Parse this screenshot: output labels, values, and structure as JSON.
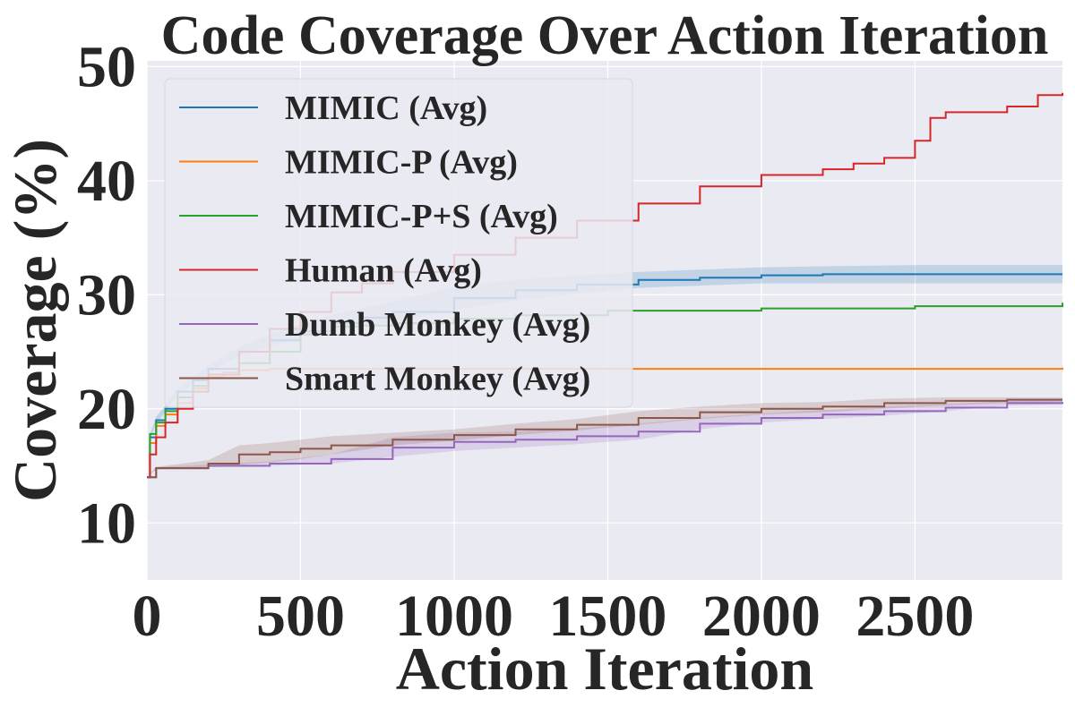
{
  "chart_data": {
    "type": "line",
    "title": "Code Coverage Over Action Iteration",
    "xlabel": "Action Iteration",
    "ylabel": "Coverage (%)",
    "xlim": [
      0,
      2980
    ],
    "ylim": [
      5,
      50.5
    ],
    "xticks": [
      0,
      500,
      1000,
      1500,
      2000,
      2500
    ],
    "yticks": [
      10,
      20,
      30,
      40,
      50
    ],
    "grid": true,
    "legend_position": "top-left",
    "background": "#eaeaf2",
    "series": [
      {
        "name": "MIMIC (Avg)",
        "color": "#1f77b4",
        "x": [
          0,
          10,
          30,
          60,
          100,
          150,
          200,
          300,
          400,
          500,
          600,
          700,
          800,
          1000,
          1200,
          1400,
          1600,
          1800,
          2000,
          2200,
          2500,
          2980
        ],
        "y": [
          14,
          17.5,
          19,
          20,
          21.5,
          22.5,
          23.5,
          25,
          26,
          26.8,
          27.5,
          28,
          28.5,
          29.7,
          30.4,
          30.9,
          31.3,
          31.5,
          31.7,
          31.8,
          31.8,
          31.8
        ],
        "band_low": [
          14,
          17.2,
          18.7,
          19.7,
          21.2,
          22.2,
          23.2,
          24.6,
          25.5,
          26.2,
          26.8,
          27.2,
          27.6,
          28.7,
          29.5,
          30.1,
          30.6,
          30.8,
          31.0,
          31.0,
          31.0,
          31.0
        ],
        "band_high": [
          14,
          17.8,
          19.3,
          20.3,
          21.8,
          22.8,
          23.8,
          25.4,
          26.5,
          27.4,
          28.2,
          28.8,
          29.4,
          30.7,
          31.3,
          31.7,
          32.0,
          32.2,
          32.4,
          32.5,
          32.6,
          32.6
        ]
      },
      {
        "name": "MIMIC-P (Avg)",
        "color": "#ff7f0e",
        "x": [
          0,
          10,
          30,
          60,
          100,
          150,
          200,
          250,
          300,
          400,
          500,
          1000,
          1500,
          2000,
          2500,
          2980
        ],
        "y": [
          14,
          17,
          18.5,
          19.5,
          20.5,
          21.8,
          22.8,
          23.2,
          23.4,
          23.5,
          23.5,
          23.5,
          23.5,
          23.5,
          23.5,
          23.6
        ]
      },
      {
        "name": "MIMIC-P+S (Avg)",
        "color": "#2ca02c",
        "x": [
          0,
          10,
          30,
          60,
          100,
          150,
          200,
          300,
          400,
          500,
          600,
          700,
          800,
          1000,
          1200,
          1500,
          2000,
          2500,
          2980
        ],
        "y": [
          14,
          17.8,
          18.8,
          19.8,
          21,
          22,
          23,
          24,
          25,
          26.5,
          27.2,
          27.3,
          27.5,
          27.9,
          28.2,
          28.6,
          28.8,
          29,
          29.3
        ]
      },
      {
        "name": "Human (Avg)",
        "color": "#d62728",
        "x": [
          0,
          10,
          30,
          60,
          100,
          150,
          200,
          300,
          400,
          500,
          600,
          700,
          800,
          1000,
          1200,
          1400,
          1600,
          1800,
          2000,
          2200,
          2300,
          2400,
          2500,
          2550,
          2600,
          2800,
          2900,
          2980
        ],
        "y": [
          14,
          16,
          17.5,
          18.8,
          20,
          21.5,
          23,
          25,
          27,
          28.5,
          30.2,
          31,
          32,
          33.5,
          35,
          36.5,
          38,
          39.5,
          40.5,
          41,
          41.5,
          42,
          43.5,
          45.5,
          46,
          46.5,
          47.5,
          47.7
        ]
      },
      {
        "name": "Dumb Monkey (Avg)",
        "color": "#9467bd",
        "x": [
          0,
          30,
          200,
          400,
          600,
          800,
          1000,
          1200,
          1400,
          1600,
          1800,
          2000,
          2200,
          2400,
          2600,
          2800,
          2980
        ],
        "y": [
          14,
          14.8,
          15,
          15.2,
          15.6,
          16.6,
          17.1,
          17.3,
          17.6,
          18,
          18.7,
          19.2,
          19.5,
          19.8,
          20.1,
          20.5,
          20.6
        ],
        "band_low": [
          14,
          14.7,
          14.9,
          15.0,
          15.2,
          15.8,
          16.3,
          16.6,
          16.9,
          17.3,
          18.2,
          18.8,
          19.1,
          19.4,
          19.8,
          20.3,
          20.4
        ],
        "band_high": [
          14,
          14.9,
          15.1,
          15.4,
          16.0,
          17.5,
          17.9,
          18.0,
          18.3,
          18.7,
          19.2,
          19.6,
          19.9,
          20.2,
          20.4,
          20.7,
          20.8
        ]
      },
      {
        "name": "Smart Monkey (Avg)",
        "color": "#8c564b",
        "x": [
          0,
          30,
          200,
          300,
          400,
          500,
          600,
          800,
          1000,
          1200,
          1400,
          1600,
          1800,
          2000,
          2200,
          2400,
          2600,
          2800,
          2980
        ],
        "y": [
          14,
          14.8,
          15.2,
          16,
          16.2,
          16.5,
          16.8,
          17.3,
          17.7,
          18.2,
          18.6,
          19.2,
          19.7,
          20,
          20.2,
          20.5,
          20.7,
          20.8,
          20.8
        ],
        "band_low": [
          14,
          14.7,
          14.9,
          15.1,
          15.3,
          15.6,
          16.0,
          16.8,
          17.2,
          17.7,
          18.1,
          18.6,
          19.1,
          19.5,
          19.7,
          20.0,
          20.3,
          20.5,
          20.6
        ],
        "band_high": [
          14,
          14.9,
          15.5,
          16.8,
          17.0,
          17.3,
          17.6,
          17.9,
          18.2,
          18.7,
          19.1,
          19.8,
          20.2,
          20.5,
          20.6,
          20.9,
          21.0,
          21.0,
          21.0
        ]
      }
    ]
  }
}
